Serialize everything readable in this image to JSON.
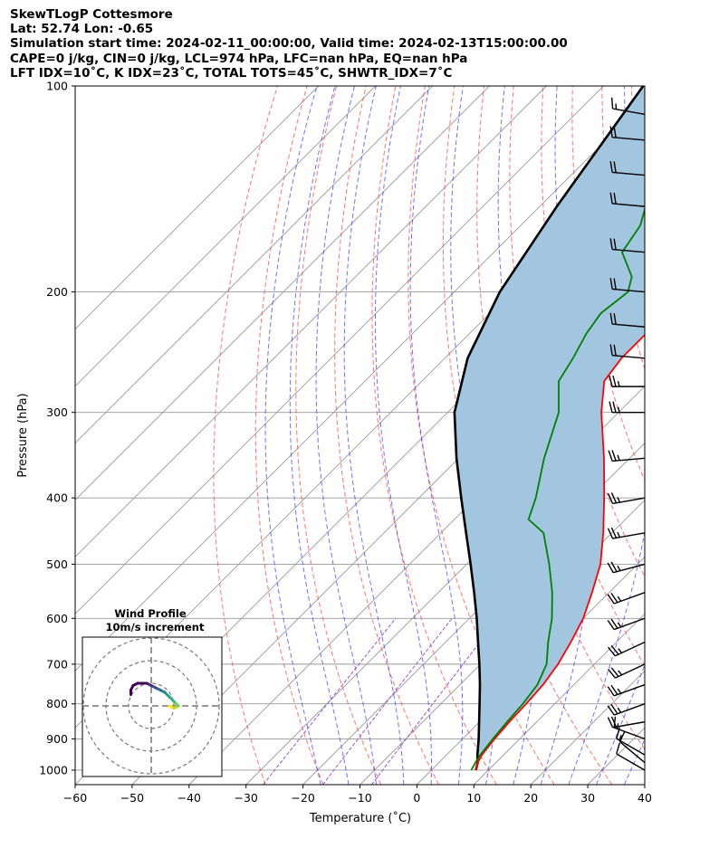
{
  "header": {
    "line1": "SkewTLogP Cottesmore",
    "line2": "Lat: 52.74   Lon: -0.65",
    "line3": "Simulation start time: 2024-02-11_00:00:00, Valid time: 2024-02-13T15:00:00.00",
    "line4": "CAPE=0 j/kg, CIN=0 j/kg, LCL=974 hPa, LFC=nan hPa, EQ=nan hPa",
    "line5": "LFT IDX=10˚C, K IDX=23˚C, TOTAL TOTS=45˚C, SHWTR_IDX=7˚C"
  },
  "chart_data": {
    "type": "skew-t",
    "xlabel": "Temperature (˚C)",
    "ylabel": "Pressure (hPa)",
    "xlim": [
      -60,
      40
    ],
    "ylim": [
      1050,
      100
    ],
    "xticks": [
      -60,
      -50,
      -40,
      -30,
      -20,
      -10,
      0,
      10,
      20,
      30,
      40
    ],
    "yticks": [
      100,
      200,
      300,
      400,
      500,
      600,
      700,
      800,
      900,
      1000
    ],
    "temperature": {
      "name": "Temperature",
      "color": "#ff0000",
      "points": [
        [
          1000,
          7.8
        ],
        [
          975,
          6.8
        ],
        [
          950,
          6.2
        ],
        [
          900,
          5.6
        ],
        [
          850,
          5.2
        ],
        [
          800,
          5.0
        ],
        [
          750,
          4.6
        ],
        [
          700,
          3.6
        ],
        [
          650,
          2.0
        ],
        [
          600,
          0.0
        ],
        [
          550,
          -3.0
        ],
        [
          500,
          -6.5
        ],
        [
          450,
          -11.5
        ],
        [
          400,
          -17.5
        ],
        [
          350,
          -24.5
        ],
        [
          300,
          -33.0
        ],
        [
          270,
          -38.0
        ],
        [
          250,
          -39.0
        ],
        [
          230,
          -39.0
        ],
        [
          200,
          -42.0
        ],
        [
          180,
          -45.5
        ],
        [
          160,
          -50.0
        ],
        [
          140,
          -56.0
        ],
        [
          120,
          -62.5
        ],
        [
          110,
          -66.0
        ],
        [
          100,
          -69.5
        ]
      ]
    },
    "dewpoint": {
      "name": "Dewpoint",
      "color": "#008000",
      "points": [
        [
          1000,
          7.0
        ],
        [
          975,
          6.4
        ],
        [
          950,
          5.9
        ],
        [
          900,
          5.3
        ],
        [
          850,
          4.8
        ],
        [
          800,
          4.4
        ],
        [
          750,
          3.6
        ],
        [
          700,
          1.6
        ],
        [
          650,
          -2.0
        ],
        [
          600,
          -5.5
        ],
        [
          550,
          -10.0
        ],
        [
          500,
          -15.5
        ],
        [
          450,
          -22.0
        ],
        [
          430,
          -27.0
        ],
        [
          400,
          -29.5
        ],
        [
          350,
          -35.0
        ],
        [
          300,
          -40.5
        ],
        [
          270,
          -46.0
        ],
        [
          250,
          -47.5
        ],
        [
          230,
          -49.5
        ],
        [
          215,
          -50.5
        ],
        [
          200,
          -49.5
        ],
        [
          190,
          -51.5
        ],
        [
          175,
          -57.5
        ],
        [
          160,
          -59.0
        ],
        [
          140,
          -64.0
        ],
        [
          120,
          -70.0
        ],
        [
          100,
          -77.0
        ]
      ]
    },
    "parcel": {
      "name": "Parcel profile",
      "color": "#000000",
      "points": [
        [
          1000,
          7.8
        ],
        [
          975,
          6.8
        ],
        [
          950,
          5.4
        ],
        [
          900,
          2.8
        ],
        [
          850,
          -0.1
        ],
        [
          800,
          -3.2
        ],
        [
          750,
          -6.5
        ],
        [
          700,
          -10.2
        ],
        [
          650,
          -14.3
        ],
        [
          600,
          -18.7
        ],
        [
          550,
          -23.7
        ],
        [
          500,
          -29.3
        ],
        [
          450,
          -35.6
        ],
        [
          400,
          -42.6
        ],
        [
          350,
          -50.4
        ],
        [
          300,
          -58.8
        ],
        [
          250,
          -66.0
        ],
        [
          200,
          -72.0
        ],
        [
          150,
          -77.0
        ],
        [
          100,
          -83.0
        ]
      ]
    },
    "hodograph": {
      "title": "Wind Profile",
      "subtitle": "10m/s increment",
      "rings_ms": [
        10,
        20,
        30
      ],
      "uv": [
        [
          8,
          0
        ],
        [
          10,
          -1
        ],
        [
          12,
          0
        ],
        [
          10,
          2
        ],
        [
          8,
          4
        ],
        [
          6,
          6
        ],
        [
          4,
          7
        ],
        [
          2,
          8
        ],
        [
          0,
          9
        ],
        [
          -2,
          10
        ],
        [
          -4,
          10
        ],
        [
          -6,
          10
        ],
        [
          -8,
          9
        ],
        [
          -9,
          7
        ],
        [
          -9,
          5
        ]
      ]
    },
    "wind_barbs": [
      {
        "p": 1000,
        "speed": 10,
        "dir": 300
      },
      {
        "p": 975,
        "speed": 10,
        "dir": 310
      },
      {
        "p": 950,
        "speed": 15,
        "dir": 300
      },
      {
        "p": 900,
        "speed": 15,
        "dir": 290
      },
      {
        "p": 850,
        "speed": 20,
        "dir": 260
      },
      {
        "p": 800,
        "speed": 25,
        "dir": 250
      },
      {
        "p": 750,
        "speed": 25,
        "dir": 250
      },
      {
        "p": 700,
        "speed": 25,
        "dir": 245
      },
      {
        "p": 650,
        "speed": 25,
        "dir": 245
      },
      {
        "p": 600,
        "speed": 25,
        "dir": 250
      },
      {
        "p": 550,
        "speed": 25,
        "dir": 250
      },
      {
        "p": 500,
        "speed": 25,
        "dir": 255
      },
      {
        "p": 450,
        "speed": 25,
        "dir": 260
      },
      {
        "p": 400,
        "speed": 25,
        "dir": 260
      },
      {
        "p": 350,
        "speed": 25,
        "dir": 265
      },
      {
        "p": 300,
        "speed": 25,
        "dir": 270
      },
      {
        "p": 275,
        "speed": 25,
        "dir": 270
      },
      {
        "p": 250,
        "speed": 20,
        "dir": 275
      },
      {
        "p": 225,
        "speed": 20,
        "dir": 275
      },
      {
        "p": 200,
        "speed": 20,
        "dir": 275
      },
      {
        "p": 175,
        "speed": 20,
        "dir": 275
      },
      {
        "p": 150,
        "speed": 20,
        "dir": 275
      },
      {
        "p": 135,
        "speed": 20,
        "dir": 275
      },
      {
        "p": 120,
        "speed": 20,
        "dir": 275
      },
      {
        "p": 110,
        "speed": 15,
        "dir": 280
      }
    ],
    "colors": {
      "cape_fill": "#a2c6e0",
      "dry_adiabat": "#ff4444",
      "moist_adiabat": "#3333ff",
      "mixing_ratio": "#9955cc",
      "isotherm": "#999999",
      "isobar": "#999999"
    }
  }
}
